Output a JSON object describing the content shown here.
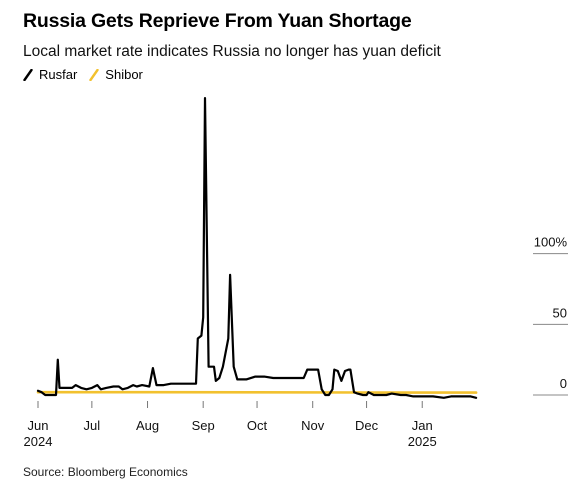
{
  "title": "Russia Gets Reprieve From Yuan Shortage",
  "subtitle": "Local market rate indicates Russia no longer has yuan deficit",
  "source": "Source: Bloomberg Economics",
  "colors": {
    "Rusfar": "#000000",
    "Shibor": "#f2c12e",
    "axis": "#999999"
  },
  "chart_data": {
    "type": "line",
    "title": "Russia Gets Reprieve From Yuan Shortage",
    "subtitle": "Local market rate indicates Russia no longer has yuan deficit",
    "xlabel": "",
    "ylabel": "",
    "xlim": [
      "2024-06-01",
      "2025-02-20"
    ],
    "ylim": [
      0,
      220
    ],
    "y_ticks": [
      {
        "value": 0,
        "label": "0"
      },
      {
        "value": 50,
        "label": "50"
      },
      {
        "value": 100,
        "label": "100%"
      }
    ],
    "x_ticks": [
      {
        "date": "2024-06-01",
        "label": "Jun",
        "sub": "2024"
      },
      {
        "date": "2024-07-01",
        "label": "Jul",
        "sub": ""
      },
      {
        "date": "2024-08-01",
        "label": "Aug",
        "sub": ""
      },
      {
        "date": "2024-09-01",
        "label": "Sep",
        "sub": ""
      },
      {
        "date": "2024-10-01",
        "label": "Oct",
        "sub": ""
      },
      {
        "date": "2024-11-01",
        "label": "Nov",
        "sub": ""
      },
      {
        "date": "2024-12-01",
        "label": "Dec",
        "sub": ""
      },
      {
        "date": "2025-01-01",
        "label": "Jan",
        "sub": "2025"
      }
    ],
    "legend_position": "top-left",
    "grid": false,
    "series": [
      {
        "name": "Rusfar",
        "color": "#000000",
        "points": [
          [
            "2024-06-01",
            3
          ],
          [
            "2024-06-03",
            2
          ],
          [
            "2024-06-05",
            0
          ],
          [
            "2024-06-08",
            0
          ],
          [
            "2024-06-11",
            0
          ],
          [
            "2024-06-12",
            25
          ],
          [
            "2024-06-13",
            5
          ],
          [
            "2024-06-17",
            5
          ],
          [
            "2024-06-20",
            5
          ],
          [
            "2024-06-22",
            7
          ],
          [
            "2024-06-25",
            5
          ],
          [
            "2024-06-28",
            4
          ],
          [
            "2024-07-01",
            5
          ],
          [
            "2024-07-04",
            7
          ],
          [
            "2024-07-06",
            4
          ],
          [
            "2024-07-09",
            5
          ],
          [
            "2024-07-13",
            6
          ],
          [
            "2024-07-16",
            6
          ],
          [
            "2024-07-18",
            4
          ],
          [
            "2024-07-21",
            5
          ],
          [
            "2024-07-24",
            7
          ],
          [
            "2024-07-26",
            6
          ],
          [
            "2024-07-29",
            7
          ],
          [
            "2024-08-02",
            6
          ],
          [
            "2024-08-04",
            19
          ],
          [
            "2024-08-06",
            7
          ],
          [
            "2024-08-10",
            7
          ],
          [
            "2024-08-14",
            8
          ],
          [
            "2024-08-18",
            8
          ],
          [
            "2024-08-24",
            8
          ],
          [
            "2024-08-28",
            8
          ],
          [
            "2024-08-29",
            40
          ],
          [
            "2024-08-31",
            42
          ],
          [
            "2024-09-01",
            55
          ],
          [
            "2024-09-02",
            210
          ],
          [
            "2024-09-04",
            20
          ],
          [
            "2024-09-06",
            20
          ],
          [
            "2024-09-07",
            20
          ],
          [
            "2024-09-08",
            10
          ],
          [
            "2024-09-10",
            12
          ],
          [
            "2024-09-12",
            20
          ],
          [
            "2024-09-15",
            40
          ],
          [
            "2024-09-16",
            85
          ],
          [
            "2024-09-18",
            20
          ],
          [
            "2024-09-20",
            11
          ],
          [
            "2024-09-25",
            11
          ],
          [
            "2024-09-30",
            13
          ],
          [
            "2024-10-05",
            13
          ],
          [
            "2024-10-10",
            12
          ],
          [
            "2024-10-15",
            12
          ],
          [
            "2024-10-20",
            12
          ],
          [
            "2024-10-25",
            12
          ],
          [
            "2024-10-27",
            12
          ],
          [
            "2024-10-29",
            18
          ],
          [
            "2024-11-01",
            18
          ],
          [
            "2024-11-04",
            18
          ],
          [
            "2024-11-06",
            4
          ],
          [
            "2024-11-08",
            0
          ],
          [
            "2024-11-10",
            0
          ],
          [
            "2024-11-12",
            4
          ],
          [
            "2024-11-13",
            18
          ],
          [
            "2024-11-15",
            17
          ],
          [
            "2024-11-17",
            10
          ],
          [
            "2024-11-19",
            17
          ],
          [
            "2024-11-21",
            18
          ],
          [
            "2024-11-22",
            18
          ],
          [
            "2024-11-24",
            2
          ],
          [
            "2024-11-26",
            1
          ],
          [
            "2024-11-29",
            0
          ],
          [
            "2024-12-01",
            0
          ],
          [
            "2024-12-02",
            2
          ],
          [
            "2024-12-05",
            0
          ],
          [
            "2024-12-10",
            0
          ],
          [
            "2024-12-12",
            0
          ],
          [
            "2024-12-15",
            1
          ],
          [
            "2024-12-20",
            0
          ],
          [
            "2024-12-23",
            0
          ],
          [
            "2024-12-27",
            -1
          ],
          [
            "2025-01-01",
            -1
          ],
          [
            "2025-01-07",
            -1
          ],
          [
            "2025-01-13",
            -2
          ],
          [
            "2025-01-17",
            -1
          ],
          [
            "2025-01-21",
            -1
          ],
          [
            "2025-01-25",
            -1
          ],
          [
            "2025-01-28",
            -1
          ],
          [
            "2025-01-31",
            -2
          ]
        ]
      },
      {
        "name": "Shibor",
        "color": "#f2c12e",
        "points": [
          [
            "2024-06-01",
            2
          ],
          [
            "2024-08-01",
            2
          ],
          [
            "2024-10-01",
            1.9
          ],
          [
            "2024-12-01",
            1.8
          ],
          [
            "2025-01-31",
            1.7
          ]
        ]
      }
    ]
  }
}
